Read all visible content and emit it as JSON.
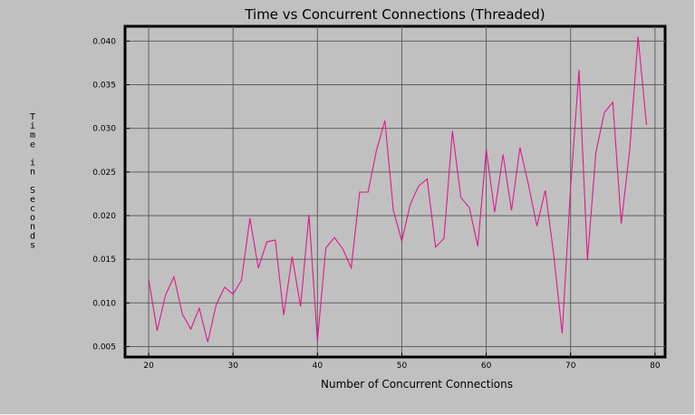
{
  "chart_data": {
    "type": "line",
    "title": "Time vs Concurrent Connections (Threaded)",
    "xlabel": "Number of Concurrent Connections",
    "ylabel": "Time in Seconds",
    "xlim": [
      17.2,
      81.2
    ],
    "ylim": [
      0.0038,
      0.0417
    ],
    "xticks": [
      20,
      30,
      40,
      50,
      60,
      70,
      80
    ],
    "yticks": [
      0.005,
      0.01,
      0.015,
      0.02,
      0.025,
      0.03,
      0.035,
      0.04
    ],
    "ytick_labels": [
      "0.005",
      "0.010",
      "0.015",
      "0.020",
      "0.025",
      "0.030",
      "0.035",
      "0.040"
    ],
    "grid": true,
    "line_color": "#e0188a",
    "background_color": "#c0c0c0",
    "series": [
      {
        "x": [
          20,
          21,
          22,
          23,
          24,
          25,
          26,
          27,
          28,
          29,
          30,
          31,
          32,
          33,
          34,
          35,
          36,
          37,
          38,
          39,
          40,
          41,
          42,
          43,
          44,
          45,
          46,
          47,
          48,
          49,
          50,
          51,
          52,
          53,
          54,
          55,
          56,
          57,
          58,
          59,
          60,
          61,
          62,
          63,
          64,
          65,
          66,
          67,
          68,
          69,
          70,
          71,
          72,
          73,
          74,
          75,
          76,
          77,
          78,
          79
        ],
        "values": [
          0.0127,
          0.0068,
          0.0109,
          0.013,
          0.0087,
          0.007,
          0.0094,
          0.0055,
          0.0098,
          0.0118,
          0.011,
          0.0126,
          0.0197,
          0.014,
          0.017,
          0.0172,
          0.0086,
          0.0153,
          0.0096,
          0.0201,
          0.0056,
          0.0163,
          0.0175,
          0.0162,
          0.014,
          0.0227,
          0.0227,
          0.0275,
          0.0309,
          0.0206,
          0.0171,
          0.0213,
          0.0234,
          0.0242,
          0.0164,
          0.0174,
          0.0297,
          0.0221,
          0.0209,
          0.0165,
          0.0276,
          0.0204,
          0.027,
          0.0206,
          0.0278,
          0.0236,
          0.0188,
          0.0229,
          0.0155,
          0.0065,
          0.0232,
          0.0367,
          0.0149,
          0.0272,
          0.0318,
          0.033,
          0.0191,
          0.0275,
          0.0405,
          0.0304
        ]
      }
    ]
  }
}
